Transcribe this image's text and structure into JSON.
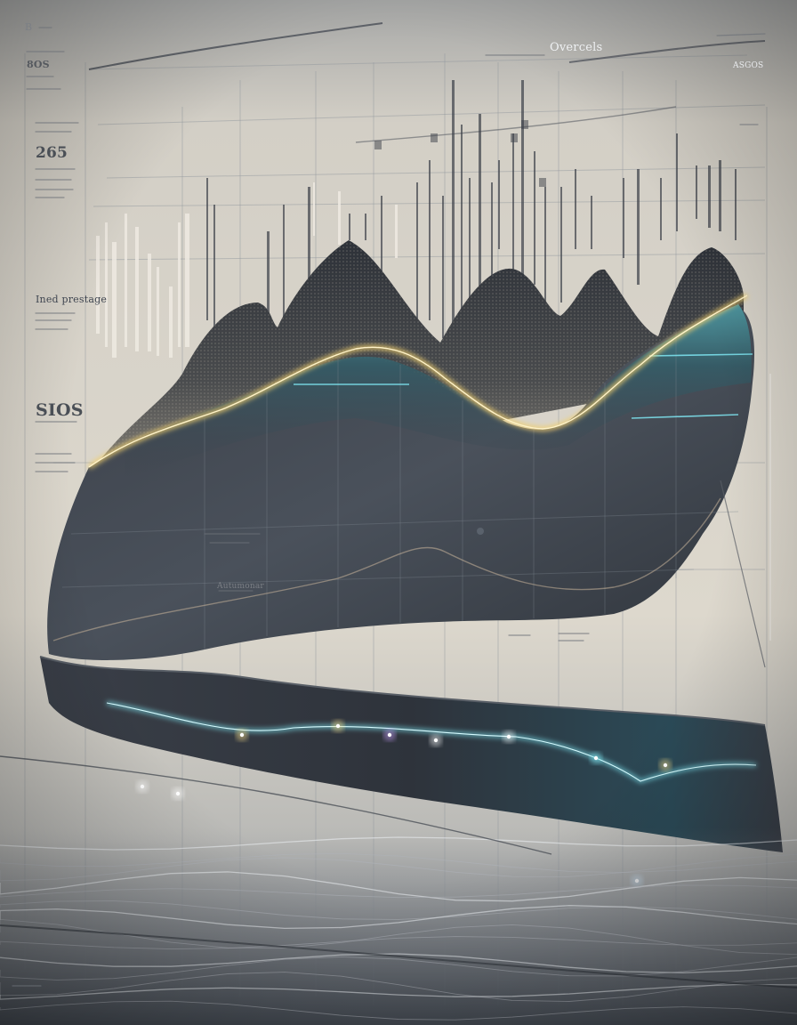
{
  "colors": {
    "background": "#d9d4ca",
    "mountain_dark": "#3a3f47",
    "ribbon_teal": "#3d8f9a",
    "glow_gold": "#f1cf6e",
    "glow_cyan": "#7fe6f2",
    "bar_light": "#eeeae2",
    "bar_dark": "#3c4048",
    "grid_line": "#8f949b"
  },
  "labels": {
    "corner_top_left": "B",
    "header_top_left": "8OS",
    "header_center": "Overcels",
    "header_right": "ASGOS",
    "side_stat_1": "265",
    "side_heading": "Ined prestage",
    "side_stat_2": "SIOS",
    "chart_note": "Autumonar"
  }
}
